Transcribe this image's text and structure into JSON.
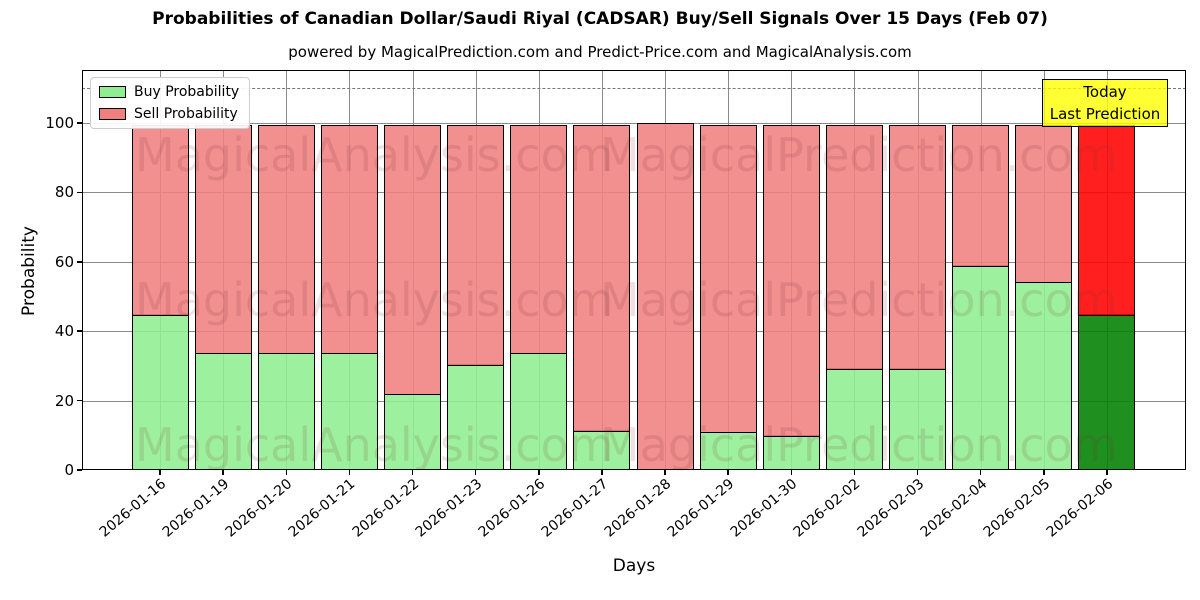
{
  "figure": {
    "title": "Probabilities of Canadian Dollar/Saudi Riyal (CADSAR) Buy/Sell Signals Over 15 Days (Feb 07)",
    "subtitle": "powered by MagicalPrediction.com and Predict-Price.com and MagicalAnalysis.com"
  },
  "legend": {
    "items": [
      {
        "label": "Buy Probability",
        "color": "#90EE90"
      },
      {
        "label": "Sell Probability",
        "color": "#F08080"
      }
    ]
  },
  "annotation_box": {
    "line1": "Today",
    "line2": "Last Prediction",
    "bg_color": "#FFFF00",
    "border_color": "#000000"
  },
  "watermarks": {
    "left_text": "MagicalAnalysis.com",
    "right_text": "MagicalPrediction.com"
  },
  "chart_data": {
    "type": "bar",
    "stacked": true,
    "title": "Probabilities of Canadian Dollar/Saudi Riyal (CADSAR) Buy/Sell Signals Over 15 Days (Feb 07)",
    "subtitle": "powered by MagicalPrediction.com and Predict-Price.com and MagicalAnalysis.com",
    "xlabel": "Days",
    "ylabel": "Probability",
    "categories": [
      "2026-01-16",
      "2026-01-19",
      "2026-01-20",
      "2026-01-21",
      "2026-01-22",
      "2026-01-23",
      "2026-01-26",
      "2026-01-27",
      "2026-01-28",
      "2026-01-29",
      "2026-01-30",
      "2026-02-02",
      "2026-02-03",
      "2026-02-04",
      "2026-02-05",
      "2026-02-06"
    ],
    "series": [
      {
        "name": "Buy Probability",
        "color": "#90EE90",
        "values": [
          45,
          33.8,
          33.8,
          33.8,
          22,
          30.5,
          33.8,
          11.5,
          0,
          11,
          10,
          29.4,
          29.4,
          59,
          54.3,
          45
        ]
      },
      {
        "name": "Sell Probability",
        "color": "#F08080",
        "values": [
          55,
          66.2,
          66.2,
          66.2,
          78,
          69.5,
          66.2,
          88.5,
          100,
          89,
          90,
          70.6,
          70.6,
          41,
          45.7,
          55
        ]
      }
    ],
    "today_index": 15,
    "today_colors": {
      "buy": "#008000",
      "sell": "#FF0000"
    },
    "ylim": [
      0,
      115.3
    ],
    "yticks": [
      0,
      20,
      40,
      60,
      80,
      100
    ],
    "dashed_line_y": 110,
    "grid": true,
    "legend_position": "upper left",
    "bar_edge_color": "#000000",
    "grid_color": "#8A8A8A"
  }
}
